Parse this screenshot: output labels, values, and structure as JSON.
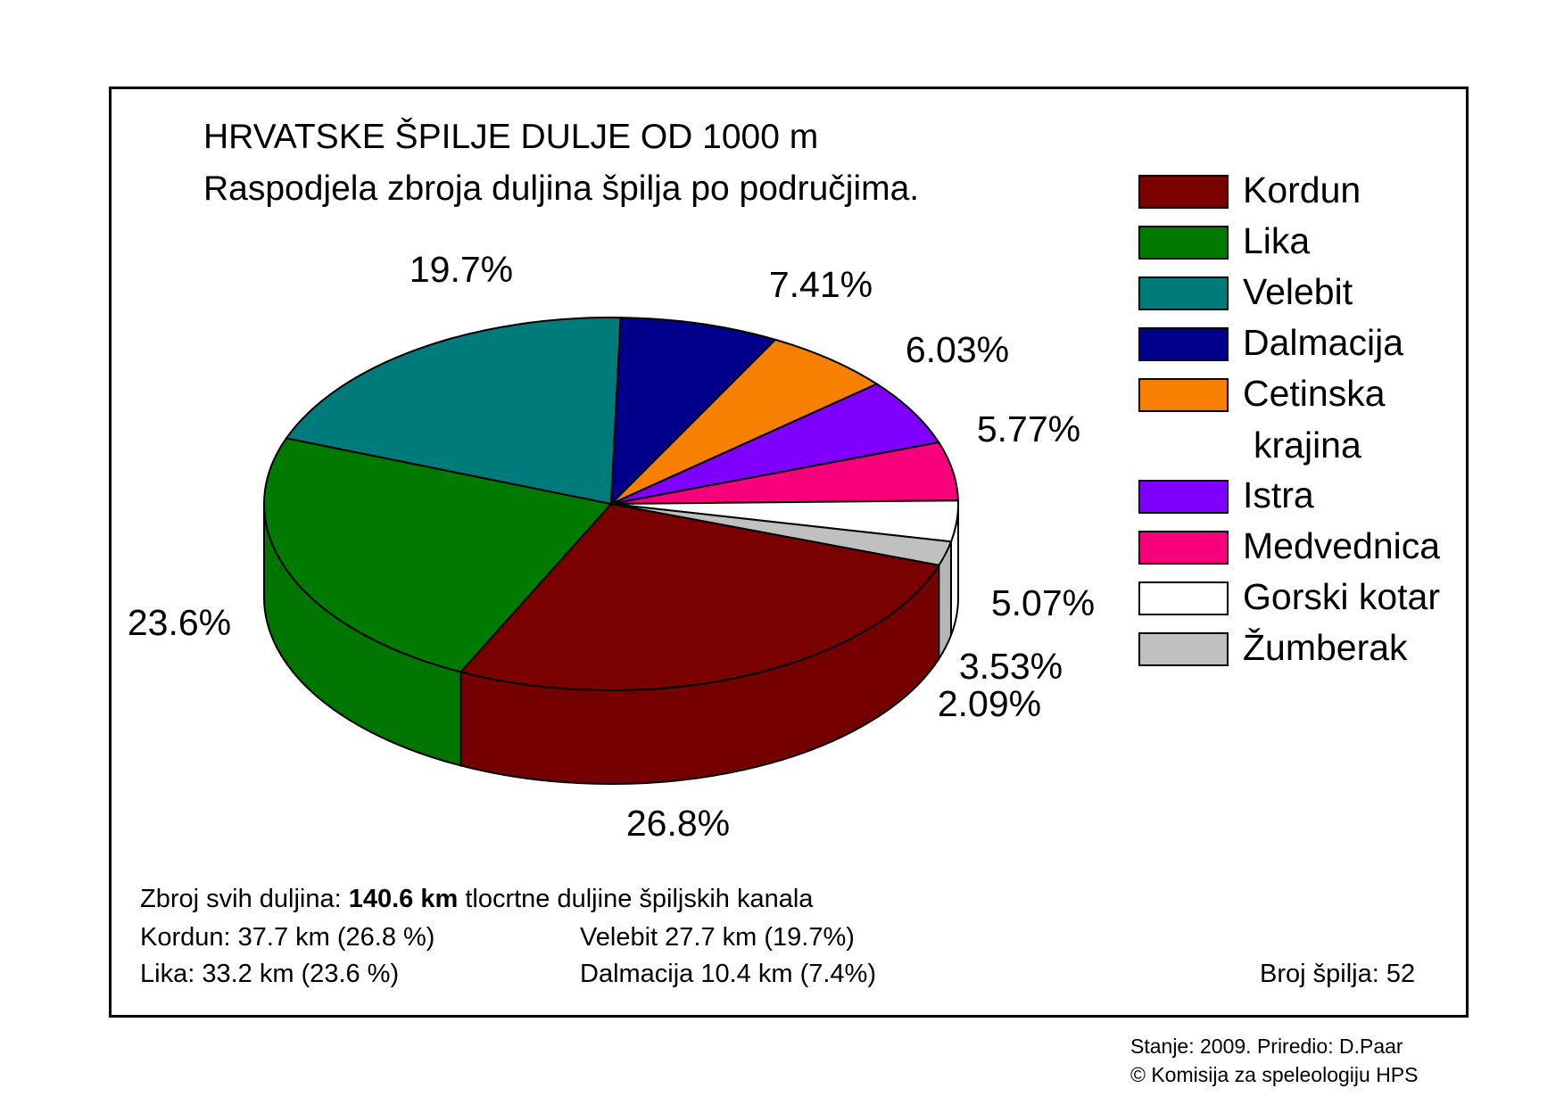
{
  "title": "HRVATSKE ŠPILJE DULJE OD 1000 m",
  "subtitle": "Raspodjela zbroja duljina špilja po područjima.",
  "chart_data": {
    "type": "pie",
    "title": "HRVATSKE ŠPILJE DULJE OD 1000 m",
    "subtitle": "Raspodjela zbroja duljina špilja po područjima.",
    "three_d": true,
    "legend_position": "right",
    "slices": [
      {
        "name": "Kordun",
        "value": 26.8,
        "label": "26.8%",
        "color": "#7b0000"
      },
      {
        "name": "Lika",
        "value": 23.6,
        "label": "23.6%",
        "color": "#007b00"
      },
      {
        "name": "Velebit",
        "value": 19.7,
        "label": "19.7%",
        "color": "#007b7b"
      },
      {
        "name": "Dalmacija",
        "value": 7.41,
        "label": "7.41%",
        "color": "#00008b"
      },
      {
        "name": "Cetinska krajina",
        "value": 6.03,
        "label": "6.03%",
        "color": "#f88000"
      },
      {
        "name": "Istra",
        "value": 5.77,
        "label": "5.77%",
        "color": "#8000ff"
      },
      {
        "name": "Medvednica",
        "value": 5.07,
        "label": "5.07%",
        "color": "#f8007b"
      },
      {
        "name": "Gorski kotar",
        "value": 3.53,
        "label": "3.53%",
        "color": "#ffffff"
      },
      {
        "name": "Žumberak",
        "value": 2.09,
        "label": "2.09%",
        "color": "#c0c0c0"
      }
    ]
  },
  "legend": [
    {
      "line1": "Kordun",
      "line2": "",
      "color": "#7b0000"
    },
    {
      "line1": "Lika",
      "line2": "",
      "color": "#007b00"
    },
    {
      "line1": "Velebit",
      "line2": "",
      "color": "#007b7b"
    },
    {
      "line1": "Dalmacija",
      "line2": "",
      "color": "#00008b"
    },
    {
      "line1": "Cetinska",
      "line2": "krajina",
      "color": "#f88000"
    },
    {
      "line1": "Istra",
      "line2": "",
      "color": "#8000ff"
    },
    {
      "line1": "Medvednica",
      "line2": "",
      "color": "#f8007b"
    },
    {
      "line1": "Gorski kotar",
      "line2": "",
      "color": "#ffffff"
    },
    {
      "line1": "Žumberak",
      "line2": "",
      "color": "#c0c0c0"
    }
  ],
  "notes": {
    "sum_prefix": "Zbroj svih duljina: ",
    "sum_value": "140.6 km",
    "sum_suffix": " tlocrtne duljine špiljskih kanala",
    "kordun": "Kordun: 37.7 km  (26.8 %)",
    "lika": "Lika: 33.2 km  (23.6 %)",
    "velebit": "Velebit  27.7 km (19.7%)",
    "dalmacija": "Dalmacija 10.4 km (7.4%)",
    "count": "Broj špilja: 52"
  },
  "credits": {
    "line1": "Stanje: 2009.  Priredio: D.Paar",
    "line2": "© Komisija za speleologiju HPS"
  }
}
